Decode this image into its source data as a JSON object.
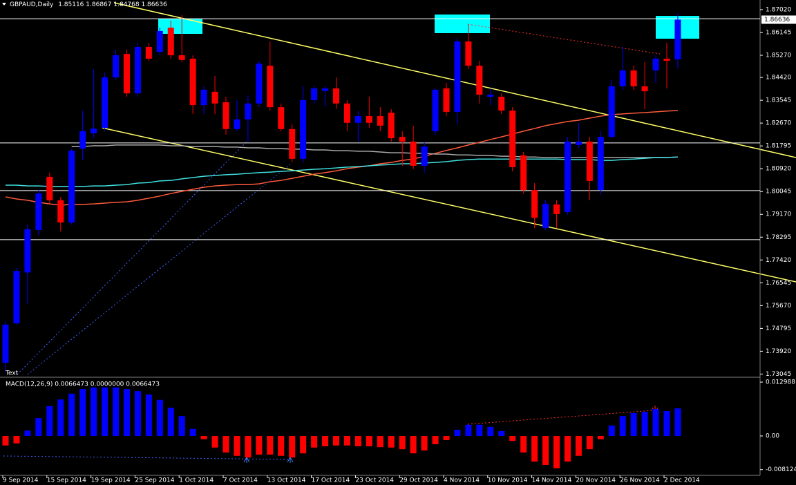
{
  "chart_data": {
    "type": "candlestick",
    "symbol": "GBPAUD,Daily",
    "text_label": "Text",
    "categories": [
      "9 Sep 2014",
      null,
      null,
      null,
      "15 Sep 2014",
      null,
      null,
      null,
      "19 Sep 2014",
      null,
      null,
      null,
      "25 Sep 2014",
      null,
      null,
      null,
      "1 Oct 2014",
      null,
      null,
      null,
      "7 Oct 2014",
      null,
      null,
      null,
      "13 Oct 2014",
      null,
      null,
      null,
      "17 Oct 2014",
      null,
      null,
      null,
      "23 Oct 2014",
      null,
      null,
      null,
      "29 Oct 2014",
      null,
      null,
      null,
      "4 Nov 2014",
      null,
      null,
      null,
      "10 Nov 2014",
      null,
      null,
      null,
      "14 Nov 2014",
      null,
      null,
      null,
      "20 Nov 2014",
      null,
      null,
      null,
      "26 Nov 2014",
      null,
      null,
      null,
      "2 Dec 2014",
      null
    ],
    "open": [
      1.7348,
      1.7499,
      1.7694,
      1.7857,
      1.8061,
      1.7971,
      1.7886,
      1.8169,
      1.8228,
      1.8249,
      1.8442,
      1.8532,
      1.8381,
      1.8559,
      1.854,
      1.8633,
      1.8527,
      1.8514,
      1.8336,
      1.8387,
      1.8347,
      1.8244,
      1.8281,
      1.8342,
      1.8487,
      1.8328,
      1.8244,
      1.813,
      1.8355,
      1.839,
      1.84,
      1.8342,
      1.8268,
      1.8294,
      1.8294,
      1.8307,
      1.8214,
      1.8196,
      1.8103,
      1.8236,
      1.84,
      1.831,
      1.858,
      1.8487,
      1.8368,
      1.8368,
      1.8315,
      1.8143,
      1.801,
      1.7865,
      1.7955,
      1.7926,
      1.8183,
      1.8196,
      1.801,
      1.8214,
      1.8408,
      1.8469,
      1.8408,
      1.8469,
      1.8514,
      1.85116
    ],
    "high": [
      1.7507,
      1.7711,
      1.7878,
      1.8011,
      1.8077,
      1.7984,
      1.8169,
      1.8315,
      1.8474,
      1.8461,
      1.8548,
      1.8548,
      1.8575,
      1.8575,
      1.8633,
      1.866,
      1.8681,
      1.8527,
      1.8408,
      1.8448,
      1.8368,
      1.8355,
      1.8373,
      1.8506,
      1.858,
      1.8342,
      1.8262,
      1.8408,
      1.8408,
      1.8408,
      1.8442,
      1.8355,
      1.8315,
      1.8368,
      1.8328,
      1.832,
      1.8236,
      1.8257,
      1.8196,
      1.84,
      1.8421,
      1.8593,
      1.8646,
      1.8506,
      1.84,
      1.8381,
      1.8328,
      1.8156,
      1.8037,
      1.7971,
      1.7971,
      1.8214,
      1.8267,
      1.8214,
      1.8236,
      1.8434,
      1.8559,
      1.8487,
      1.8501,
      1.8527,
      1.8575,
      1.86867
    ],
    "low": [
      1.731,
      1.7494,
      1.7573,
      1.7838,
      1.7958,
      1.7852,
      1.7878,
      1.8124,
      1.821,
      1.8236,
      1.8434,
      1.8368,
      1.8368,
      1.8506,
      1.8527,
      1.8514,
      1.8501,
      1.8302,
      1.8302,
      1.8302,
      1.8223,
      1.8236,
      1.8196,
      1.8328,
      1.8315,
      1.8236,
      1.8116,
      1.8116,
      1.8342,
      1.833,
      1.8321,
      1.8236,
      1.8196,
      1.8249,
      1.8236,
      1.8196,
      1.8103,
      1.809,
      1.8077,
      1.8222,
      1.8294,
      1.8262,
      1.8474,
      1.8342,
      1.8336,
      1.8302,
      1.8082,
      1.7997,
      1.7865,
      1.7857,
      1.7865,
      1.7916,
      1.817,
      1.7971,
      1.7992,
      1.8209,
      1.8394,
      1.8394,
      1.832,
      1.8421,
      1.84,
      1.84768
    ],
    "close": [
      1.7494,
      1.77,
      1.786,
      1.7997,
      1.7971,
      1.7886,
      1.8161,
      1.8236,
      1.8246,
      1.8442,
      1.8527,
      1.8381,
      1.8559,
      1.8514,
      1.862,
      1.8527,
      1.8509,
      1.8336,
      1.8395,
      1.8342,
      1.8244,
      1.8281,
      1.8342,
      1.8495,
      1.8328,
      1.8244,
      1.813,
      1.8355,
      1.84,
      1.84,
      1.8342,
      1.8268,
      1.8294,
      1.8268,
      1.8257,
      1.8209,
      1.8196,
      1.8103,
      1.8177,
      1.8395,
      1.831,
      1.858,
      1.8487,
      1.8376,
      1.8376,
      1.8315,
      1.8098,
      1.801,
      1.7904,
      1.7957,
      1.7918,
      1.8196,
      1.8196,
      1.8045,
      1.8214,
      1.8408,
      1.8469,
      1.8408,
      1.8389,
      1.8514,
      1.8506,
      1.86636
    ],
    "up_color": "#0000ff",
    "down_color": "#ff0000",
    "ylim": [
      1.7295,
      1.8739
    ],
    "yticks": [
      {
        "value": 1.8702,
        "label": "1.87020"
      },
      1.86145,
      {
        "value": 1.8527,
        "label": "1.85270"
      },
      {
        "value": 1.8442,
        "label": "1.84420"
      },
      1.83545,
      {
        "value": 1.8267,
        "label": "1.82670"
      },
      1.81795,
      {
        "value": 1.8092,
        "label": "1.80920"
      },
      1.80045,
      {
        "value": 1.7917,
        "label": "1.79170"
      },
      1.78295,
      {
        "value": 1.7742,
        "label": "1.77420"
      },
      1.76545,
      {
        "value": 1.7567,
        "label": "1.75670"
      },
      1.74795,
      {
        "value": 1.7392,
        "label": "1.73920"
      },
      1.73045
    ],
    "hlines": [
      1.8667,
      1.8191,
      1.8008,
      1.782
    ],
    "hline_color": "#ffffff",
    "ma": [
      {
        "color": "#ff5a3c",
        "values": [
          1.7984,
          1.7976,
          1.7971,
          1.7963,
          1.7957,
          1.7952,
          1.7955,
          1.7955,
          1.7957,
          1.796,
          1.7963,
          1.7965,
          1.7971,
          1.7979,
          1.7987,
          1.7997,
          1.8005,
          1.8013,
          1.8021,
          1.8026,
          1.8029,
          1.8031,
          1.8031,
          1.8034,
          1.8042,
          1.8047,
          1.8055,
          1.8063,
          1.8071,
          1.8077,
          1.8084,
          1.8092,
          1.8098,
          1.8103,
          1.8111,
          1.8116,
          1.8124,
          1.8129,
          1.814,
          1.8151,
          1.8162,
          1.8172,
          1.8183,
          1.8193,
          1.8204,
          1.8214,
          1.8225,
          1.8236,
          1.8246,
          1.8257,
          1.8265,
          1.8273,
          1.8278,
          1.8286,
          1.8294,
          1.8299,
          1.8302,
          1.8305,
          1.8307,
          1.831,
          1.8313,
          1.8315
        ]
      },
      {
        "color": "#a9a9a9",
        "values": [
          null,
          null,
          null,
          null,
          null,
          null,
          1.8177,
          1.8177,
          1.818,
          1.818,
          1.8183,
          1.8183,
          1.8183,
          1.8183,
          1.8183,
          1.818,
          1.818,
          1.8177,
          1.8177,
          1.8177,
          1.8175,
          1.8175,
          1.8172,
          1.8172,
          1.8169,
          1.8169,
          1.8167,
          1.8167,
          1.8164,
          1.8164,
          1.8161,
          1.8161,
          1.8159,
          1.8159,
          1.8156,
          1.8153,
          1.8153,
          1.8151,
          1.8151,
          1.8148,
          1.8148,
          1.8145,
          1.8145,
          1.8143,
          1.8143,
          1.814,
          1.814,
          1.8137,
          1.8137,
          1.8135,
          1.8135,
          1.8135,
          1.8135,
          1.8135,
          1.8135,
          1.8135,
          1.8135,
          1.8135,
          1.8135,
          1.8135,
          1.8135,
          1.8137
        ]
      },
      {
        "color": "#40e0e0",
        "values": [
          1.8029,
          1.8029,
          1.8026,
          1.8026,
          1.8024,
          1.8024,
          1.8024,
          1.8024,
          1.8026,
          1.8026,
          1.8029,
          1.8031,
          1.8037,
          1.8039,
          1.8045,
          1.8047,
          1.8053,
          1.8058,
          1.8063,
          1.8066,
          1.8069,
          1.8071,
          1.8074,
          1.8077,
          1.8079,
          1.8082,
          1.8084,
          1.8087,
          1.809,
          1.8092,
          1.8095,
          1.8098,
          1.81,
          1.8103,
          1.8106,
          1.8108,
          1.8111,
          1.8111,
          1.8114,
          1.8116,
          1.8119,
          1.8124,
          1.8127,
          1.8129,
          1.8129,
          1.8129,
          1.8129,
          1.8129,
          1.8129,
          1.8129,
          1.8129,
          1.8127,
          1.8127,
          1.8127,
          1.8124,
          1.8124,
          1.8127,
          1.8129,
          1.8132,
          1.8135,
          1.8135,
          1.8137
        ]
      }
    ],
    "macd": {
      "label": "MACD(12,26,9) 0.0066473 0.0000000 0.0066473",
      "values": [
        -0.0023,
        -0.0018,
        0.0013,
        0.0043,
        0.0072,
        0.0088,
        0.0102,
        0.0113,
        0.0117,
        0.0117,
        0.0117,
        0.0113,
        0.0108,
        0.01,
        0.0087,
        0.0068,
        0.0048,
        0.0017,
        -0.0008,
        -0.0028,
        -0.004,
        -0.0048,
        -0.0052,
        -0.0045,
        -0.0045,
        -0.0048,
        -0.0052,
        -0.0042,
        -0.0028,
        -0.0025,
        -0.0023,
        -0.0023,
        -0.0025,
        -0.0025,
        -0.0027,
        -0.0028,
        -0.0032,
        -0.0042,
        -0.0035,
        -0.002,
        -0.001,
        0.0015,
        0.0027,
        0.0027,
        0.0022,
        0.0012,
        -0.0012,
        -0.004,
        -0.0062,
        -0.007,
        -0.0078,
        -0.0062,
        -0.0048,
        -0.0032,
        -0.0008,
        0.0025,
        0.0048,
        0.0055,
        0.0058,
        0.0065,
        0.006,
        0.0066473
      ],
      "up_color": "#0000ff",
      "down_color": "#ff0000",
      "ylim": [
        -0.0095,
        0.014
      ],
      "yticks": [
        0.012988,
        {
          "value": 0,
          "label": "0.00"
        },
        -0.008124
      ]
    }
  }
}
